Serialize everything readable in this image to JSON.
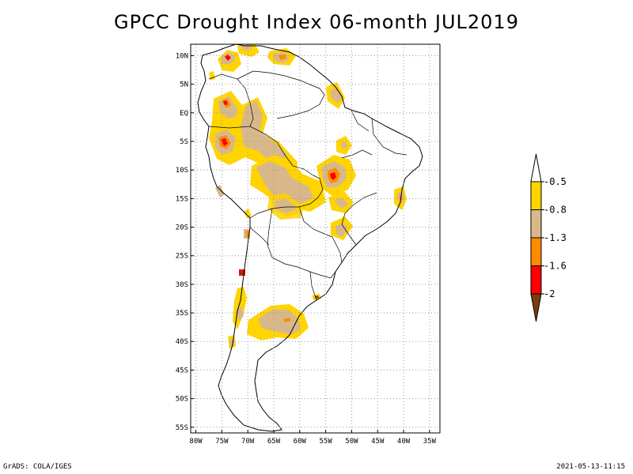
{
  "title": "GPCC Drought Index 06-month JUL2019",
  "footer_left": "GrADS: COLA/IGES",
  "footer_right": "2021-05-13-11:15",
  "map": {
    "lon_range": [
      -81,
      -33
    ],
    "lat_range": [
      -56,
      12
    ],
    "lon_ticks": [
      {
        "v": -80,
        "label": "80W"
      },
      {
        "v": -75,
        "label": "75W"
      },
      {
        "v": -70,
        "label": "70W"
      },
      {
        "v": -65,
        "label": "65W"
      },
      {
        "v": -60,
        "label": "60W"
      },
      {
        "v": -55,
        "label": "55W"
      },
      {
        "v": -50,
        "label": "50W"
      },
      {
        "v": -45,
        "label": "45W"
      },
      {
        "v": -40,
        "label": "40W"
      },
      {
        "v": -35,
        "label": "35W"
      }
    ],
    "lat_ticks": [
      {
        "v": 10,
        "label": "10N"
      },
      {
        "v": 5,
        "label": "5N"
      },
      {
        "v": 0,
        "label": "EQ"
      },
      {
        "v": -5,
        "label": "5S"
      },
      {
        "v": -10,
        "label": "10S"
      },
      {
        "v": -15,
        "label": "15S"
      },
      {
        "v": -20,
        "label": "20S"
      },
      {
        "v": -25,
        "label": "25S"
      },
      {
        "v": -30,
        "label": "30S"
      },
      {
        "v": -35,
        "label": "35S"
      },
      {
        "v": -40,
        "label": "40S"
      },
      {
        "v": -45,
        "label": "45S"
      },
      {
        "v": -50,
        "label": "50S"
      },
      {
        "v": -55,
        "label": "55S"
      }
    ],
    "grid": "dotted"
  },
  "colorbar": {
    "colors": [
      "#ffffff",
      "#ffd400",
      "#d8b88a",
      "#ff8c00",
      "#ff0000",
      "#7a3c10"
    ],
    "labels": [
      "-0.5",
      "-0.8",
      "-1.3",
      "-1.6",
      "-2"
    ]
  },
  "colors": {
    "yellow": "#ffd400",
    "tan": "#d8b88a",
    "orange": "#ff8c00",
    "red": "#ff0000",
    "brown": "#7a3c10"
  }
}
